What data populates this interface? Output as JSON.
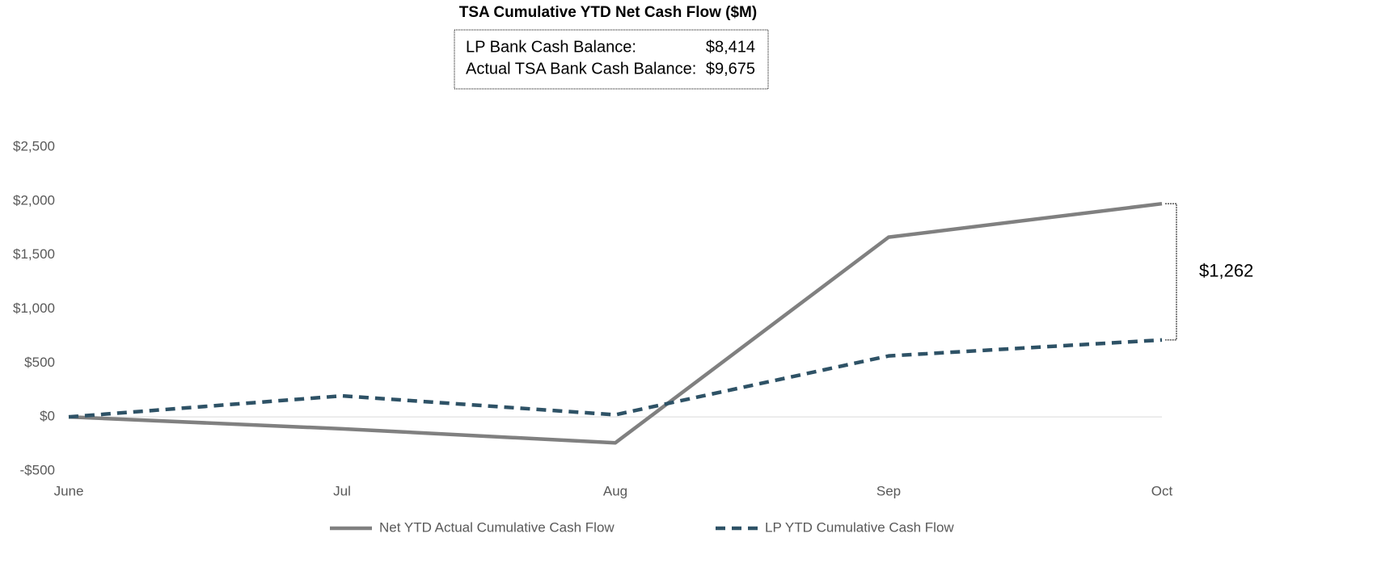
{
  "chart_data": {
    "type": "line",
    "title": "TSA Cumulative YTD Net Cash Flow ($M)",
    "info_box": {
      "rows": [
        {
          "label": "LP Bank Cash Balance:",
          "value": "$8,414"
        },
        {
          "label": "Actual TSA Bank Cash Balance:",
          "value": "$9,675"
        }
      ]
    },
    "categories": [
      "June",
      "Jul",
      "Aug",
      "Sep",
      "Oct"
    ],
    "series": [
      {
        "name": "Net YTD Actual Cumulative Cash Flow",
        "color": "#808080",
        "dash": false,
        "values": [
          0,
          -110,
          -240,
          1665,
          1975
        ]
      },
      {
        "name": "LP YTD Cumulative Cash Flow",
        "color": "#2e5266",
        "dash": true,
        "values": [
          0,
          195,
          20,
          565,
          713
        ]
      }
    ],
    "annotation": "$1,262",
    "ylim": [
      -500,
      2500
    ],
    "yticks": [
      {
        "value": -500,
        "label": "-$500"
      },
      {
        "value": 0,
        "label": "$0"
      },
      {
        "value": 500,
        "label": "$500"
      },
      {
        "value": 1000,
        "label": "$1,000"
      },
      {
        "value": 1500,
        "label": "$1,500"
      },
      {
        "value": 2000,
        "label": "$2,000"
      },
      {
        "value": 2500,
        "label": "$2,500"
      }
    ],
    "grid": false,
    "legend": "bottom"
  }
}
